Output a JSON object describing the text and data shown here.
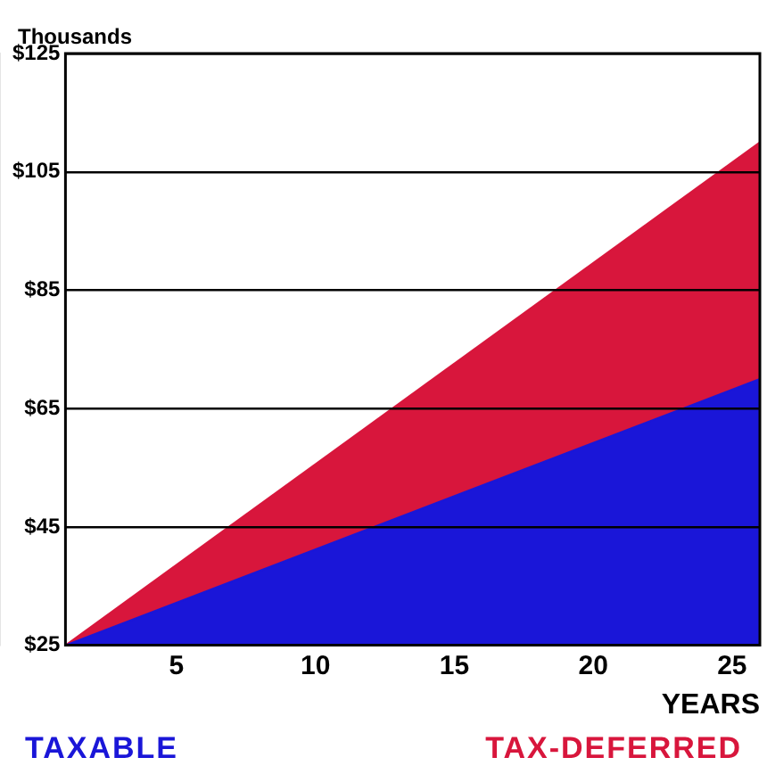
{
  "chart_data": {
    "type": "area",
    "xlabel": "YEARS",
    "ylabel": "Thousands",
    "x": [
      1,
      26
    ],
    "series": [
      {
        "name": "TAXABLE",
        "color": "#1a16d8",
        "values": [
          25,
          70
        ]
      },
      {
        "name": "TAX-DEFERRED",
        "color": "#d8163c",
        "values": [
          25,
          110
        ]
      }
    ],
    "xlim": [
      1,
      26
    ],
    "xticks": [
      5,
      10,
      15,
      20,
      25
    ],
    "ylim": [
      25,
      125
    ],
    "yticks": [
      {
        "value": 25,
        "label": "$25"
      },
      {
        "value": 45,
        "label": "$45"
      },
      {
        "value": 65,
        "label": "$65"
      },
      {
        "value": 85,
        "label": "$85"
      },
      {
        "value": 105,
        "label": "$105"
      },
      {
        "value": 125,
        "label": "$125"
      }
    ],
    "grid": "y",
    "legend": "bottom"
  }
}
